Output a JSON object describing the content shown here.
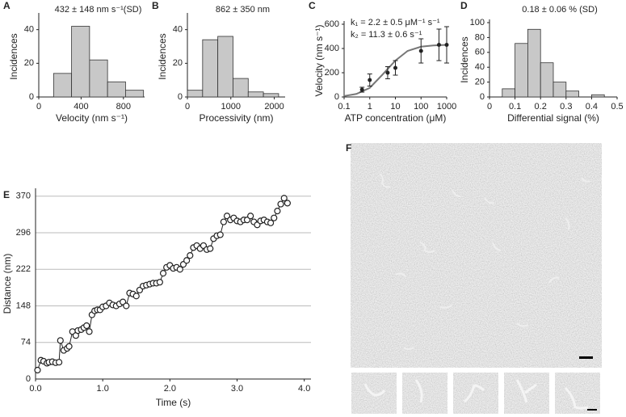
{
  "chart_data": [
    {
      "type": "histogram",
      "label": "A",
      "annotation": "432 ± 148 nm s⁻¹(SD)",
      "xlabel": "Velocity (nm s⁻¹)",
      "ylabel": "Incidences",
      "bins": [
        140,
        310,
        480,
        650,
        820,
        990
      ],
      "values": [
        14,
        42,
        22,
        9,
        4
      ],
      "color": "#c8c8c8",
      "xlim": [
        0,
        1000
      ],
      "ylim": [
        0,
        48
      ],
      "xticks": [
        0,
        400,
        800
      ],
      "yticks": [
        0,
        20,
        40
      ]
    },
    {
      "type": "histogram",
      "label": "B",
      "annotation": "862 ± 350 nm",
      "xlabel": "Processivity (nm)",
      "ylabel": "Incidences",
      "bins": [
        0,
        350,
        700,
        1050,
        1400,
        1750,
        2100
      ],
      "values": [
        4,
        34,
        36,
        11,
        3,
        2
      ],
      "color": "#c8c8c8",
      "xlim": [
        0,
        2250
      ],
      "ylim": [
        0,
        48
      ],
      "xticks": [
        0,
        1000,
        2000
      ],
      "yticks": [
        0,
        20,
        40
      ]
    },
    {
      "type": "scatter",
      "label": "C",
      "annotations": [
        "k₁ =  2.2 ± 0.5 μM⁻¹ s⁻¹",
        "k₂ = 11.3 ± 0.6 s⁻¹"
      ],
      "xlabel": "ATP concentration  (μM)",
      "ylabel": "Velocity (nm s⁻¹)",
      "xscale": "log",
      "x": [
        0.5,
        1,
        5,
        10,
        100,
        500,
        1000
      ],
      "values": [
        60,
        140,
        200,
        240,
        380,
        430,
        430
      ],
      "errors": [
        20,
        50,
        50,
        60,
        100,
        130,
        150
      ],
      "color": "#222222",
      "fit": {
        "x": [
          0.1,
          0.3,
          1,
          3,
          10,
          30,
          100,
          300,
          1000
        ],
        "values": [
          8,
          25,
          75,
          180,
          300,
          380,
          415,
          425,
          430
        ],
        "color": "#777777"
      },
      "xlim": [
        0.1,
        1000
      ],
      "ylim": [
        0,
        600
      ],
      "xticks": [
        0.1,
        1,
        10,
        100,
        1000
      ],
      "yticks": [
        0,
        200,
        400,
        600
      ]
    },
    {
      "type": "histogram",
      "label": "D",
      "annotation": "0.18 ± 0.06 % (SD)",
      "xlabel": "Differential signal (%)",
      "ylabel": "Incidences",
      "bins": [
        0.05,
        0.1,
        0.15,
        0.2,
        0.25,
        0.3,
        0.35,
        0.4,
        0.45
      ],
      "values": [
        11,
        72,
        91,
        46,
        20,
        8,
        0,
        3
      ],
      "color": "#c8c8c8",
      "xlim": [
        0,
        0.5
      ],
      "ylim": [
        0,
        100
      ],
      "xticks": [
        0,
        0.1,
        0.2,
        0.3,
        0.4,
        0.5
      ],
      "yticks": [
        0,
        20,
        40,
        60,
        80,
        100
      ]
    },
    {
      "type": "line",
      "label": "E",
      "xlabel": "Time (s)",
      "ylabel": "Distance (nm)",
      "grid": true,
      "marker": "circle",
      "color": "#222222",
      "x": [
        0.03,
        0.08,
        0.12,
        0.17,
        0.2,
        0.25,
        0.3,
        0.35,
        0.37,
        0.42,
        0.47,
        0.5,
        0.55,
        0.6,
        0.63,
        0.68,
        0.72,
        0.76,
        0.8,
        0.84,
        0.88,
        0.92,
        0.96,
        1.0,
        1.05,
        1.1,
        1.15,
        1.2,
        1.25,
        1.3,
        1.35,
        1.4,
        1.45,
        1.5,
        1.55,
        1.6,
        1.65,
        1.7,
        1.75,
        1.8,
        1.85,
        1.9,
        1.95,
        2.0,
        2.05,
        2.1,
        2.15,
        2.2,
        2.25,
        2.3,
        2.35,
        2.4,
        2.45,
        2.5,
        2.55,
        2.6,
        2.65,
        2.7,
        2.75,
        2.8,
        2.85,
        2.9,
        2.95,
        3.0,
        3.05,
        3.1,
        3.15,
        3.2,
        3.25,
        3.3,
        3.35,
        3.4,
        3.45,
        3.5,
        3.55,
        3.6,
        3.65,
        3.7,
        3.75
      ],
      "values": [
        18,
        38,
        36,
        32,
        34,
        35,
        33,
        34,
        78,
        58,
        62,
        66,
        96,
        88,
        98,
        100,
        104,
        108,
        96,
        130,
        138,
        140,
        140,
        146,
        148,
        154,
        150,
        148,
        152,
        156,
        148,
        174,
        172,
        168,
        180,
        188,
        190,
        192,
        194,
        194,
        196,
        214,
        226,
        230,
        224,
        226,
        222,
        232,
        240,
        250,
        266,
        270,
        264,
        270,
        262,
        264,
        284,
        290,
        292,
        318,
        330,
        322,
        326,
        320,
        318,
        322,
        322,
        330,
        318,
        312,
        320,
        322,
        318,
        316,
        326,
        340,
        354,
        366,
        356
      ],
      "xlim": [
        0,
        4.1
      ],
      "ylim": [
        0,
        386
      ],
      "xticks": [
        {
          "value": 0,
          "label": "0.0"
        },
        {
          "value": 1,
          "label": "1.0"
        },
        {
          "value": 2,
          "label": "2.0"
        },
        {
          "value": 3,
          "label": "3.0"
        },
        {
          "value": 4,
          "label": "4.0"
        }
      ],
      "yticks": [
        0,
        74,
        148,
        222,
        296,
        370
      ]
    }
  ],
  "micrograph": {
    "label": "F"
  }
}
